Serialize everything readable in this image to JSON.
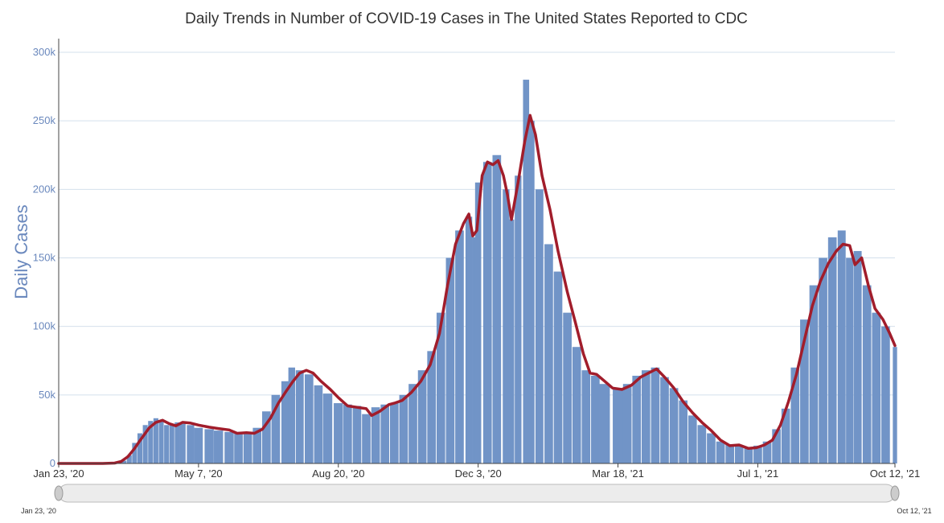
{
  "chart_data": {
    "type": "bar",
    "title": "Daily Trends in Number of COVID-19 Cases in The United States Reported to CDC",
    "ylabel": "Daily Cases",
    "xlabel": "",
    "ylim": [
      0,
      300000
    ],
    "xlim": [
      "2020-01-23",
      "2021-10-12"
    ],
    "grid": true,
    "yticks": [
      {
        "value": 0,
        "label": "0"
      },
      {
        "value": 50000,
        "label": "50k"
      },
      {
        "value": 100000,
        "label": "100k"
      },
      {
        "value": 150000,
        "label": "150k"
      },
      {
        "value": 200000,
        "label": "200k"
      },
      {
        "value": 250000,
        "label": "250k"
      },
      {
        "value": 300000,
        "label": "300k"
      }
    ],
    "xticks": [
      {
        "date": "2020-01-23",
        "label": "Jan 23, '20"
      },
      {
        "date": "2020-05-07",
        "label": "May 7, '20"
      },
      {
        "date": "2020-08-20",
        "label": "Aug 20, '20"
      },
      {
        "date": "2020-12-03",
        "label": "Dec 3, '20"
      },
      {
        "date": "2021-03-18",
        "label": "Mar 18, '21"
      },
      {
        "date": "2021-07-01",
        "label": "Jul 1, '21"
      },
      {
        "date": "2021-10-12",
        "label": "Oct 12, '21"
      }
    ],
    "range_selector": {
      "start_label": "Jan 23, '20",
      "end_label": "Oct 12, '21"
    },
    "series": [
      {
        "kind": "bars",
        "color": "#7194c7",
        "points": [
          [
            "2020-01-23",
            0
          ],
          [
            "2020-02-20",
            0
          ],
          [
            "2020-03-01",
            0
          ],
          [
            "2020-03-08",
            500
          ],
          [
            "2020-03-12",
            2000
          ],
          [
            "2020-03-16",
            6000
          ],
          [
            "2020-03-20",
            15000
          ],
          [
            "2020-03-24",
            22000
          ],
          [
            "2020-03-28",
            28000
          ],
          [
            "2020-04-01",
            31000
          ],
          [
            "2020-04-05",
            33000
          ],
          [
            "2020-04-09",
            31000
          ],
          [
            "2020-04-13",
            28000
          ],
          [
            "2020-04-17",
            29000
          ],
          [
            "2020-04-21",
            30000
          ],
          [
            "2020-04-25",
            29000
          ],
          [
            "2020-05-01",
            28000
          ],
          [
            "2020-05-07",
            26000
          ],
          [
            "2020-05-15",
            25000
          ],
          [
            "2020-05-22",
            24000
          ],
          [
            "2020-05-30",
            23000
          ],
          [
            "2020-06-06",
            22000
          ],
          [
            "2020-06-13",
            22000
          ],
          [
            "2020-06-20",
            26000
          ],
          [
            "2020-06-27",
            38000
          ],
          [
            "2020-07-04",
            50000
          ],
          [
            "2020-07-11",
            60000
          ],
          [
            "2020-07-16",
            70000
          ],
          [
            "2020-07-22",
            68000
          ],
          [
            "2020-07-29",
            65000
          ],
          [
            "2020-08-05",
            57000
          ],
          [
            "2020-08-12",
            51000
          ],
          [
            "2020-08-20",
            44000
          ],
          [
            "2020-08-27",
            43000
          ],
          [
            "2020-09-03",
            42000
          ],
          [
            "2020-09-10",
            36000
          ],
          [
            "2020-09-17",
            41000
          ],
          [
            "2020-09-24",
            43000
          ],
          [
            "2020-10-01",
            44000
          ],
          [
            "2020-10-08",
            50000
          ],
          [
            "2020-10-15",
            58000
          ],
          [
            "2020-10-22",
            68000
          ],
          [
            "2020-10-29",
            82000
          ],
          [
            "2020-11-05",
            110000
          ],
          [
            "2020-11-12",
            150000
          ],
          [
            "2020-11-19",
            170000
          ],
          [
            "2020-11-26",
            180000
          ],
          [
            "2020-11-30",
            165000
          ],
          [
            "2020-12-03",
            205000
          ],
          [
            "2020-12-10",
            220000
          ],
          [
            "2020-12-17",
            225000
          ],
          [
            "2020-12-24",
            200000
          ],
          [
            "2020-12-28",
            178000
          ],
          [
            "2021-01-02",
            210000
          ],
          [
            "2021-01-08",
            280000
          ],
          [
            "2021-01-12",
            250000
          ],
          [
            "2021-01-18",
            200000
          ],
          [
            "2021-01-25",
            160000
          ],
          [
            "2021-02-01",
            140000
          ],
          [
            "2021-02-08",
            110000
          ],
          [
            "2021-02-15",
            85000
          ],
          [
            "2021-02-22",
            68000
          ],
          [
            "2021-03-01",
            64000
          ],
          [
            "2021-03-08",
            58000
          ],
          [
            "2021-03-18",
            54000
          ],
          [
            "2021-03-25",
            58000
          ],
          [
            "2021-04-01",
            64000
          ],
          [
            "2021-04-08",
            68000
          ],
          [
            "2021-04-15",
            70000
          ],
          [
            "2021-04-22",
            63000
          ],
          [
            "2021-04-29",
            55000
          ],
          [
            "2021-05-06",
            46000
          ],
          [
            "2021-05-13",
            35000
          ],
          [
            "2021-05-20",
            28000
          ],
          [
            "2021-05-27",
            22000
          ],
          [
            "2021-06-03",
            16000
          ],
          [
            "2021-06-10",
            14000
          ],
          [
            "2021-06-17",
            13000
          ],
          [
            "2021-06-24",
            12000
          ],
          [
            "2021-07-01",
            13000
          ],
          [
            "2021-07-08",
            16000
          ],
          [
            "2021-07-15",
            25000
          ],
          [
            "2021-07-22",
            40000
          ],
          [
            "2021-07-29",
            70000
          ],
          [
            "2021-08-05",
            105000
          ],
          [
            "2021-08-12",
            130000
          ],
          [
            "2021-08-19",
            150000
          ],
          [
            "2021-08-26",
            165000
          ],
          [
            "2021-09-02",
            170000
          ],
          [
            "2021-09-08",
            150000
          ],
          [
            "2021-09-14",
            155000
          ],
          [
            "2021-09-21",
            130000
          ],
          [
            "2021-09-28",
            110000
          ],
          [
            "2021-10-05",
            100000
          ],
          [
            "2021-10-12",
            85000
          ]
        ]
      },
      {
        "kind": "line",
        "color": "#a11d2b",
        "points": [
          [
            "2020-01-23",
            0
          ],
          [
            "2020-02-25",
            0
          ],
          [
            "2020-03-05",
            300
          ],
          [
            "2020-03-10",
            1500
          ],
          [
            "2020-03-15",
            5000
          ],
          [
            "2020-03-20",
            11000
          ],
          [
            "2020-03-25",
            18000
          ],
          [
            "2020-03-31",
            26000
          ],
          [
            "2020-04-05",
            30000
          ],
          [
            "2020-04-10",
            31500
          ],
          [
            "2020-04-15",
            29000
          ],
          [
            "2020-04-20",
            27500
          ],
          [
            "2020-04-25",
            30000
          ],
          [
            "2020-05-01",
            29500
          ],
          [
            "2020-05-07",
            28000
          ],
          [
            "2020-05-15",
            26500
          ],
          [
            "2020-05-22",
            25500
          ],
          [
            "2020-05-30",
            24500
          ],
          [
            "2020-06-05",
            22000
          ],
          [
            "2020-06-12",
            22500
          ],
          [
            "2020-06-18",
            22000
          ],
          [
            "2020-06-24",
            25000
          ],
          [
            "2020-06-30",
            33000
          ],
          [
            "2020-07-06",
            44000
          ],
          [
            "2020-07-12",
            53000
          ],
          [
            "2020-07-17",
            60000
          ],
          [
            "2020-07-22",
            66000
          ],
          [
            "2020-07-27",
            68000
          ],
          [
            "2020-08-01",
            66000
          ],
          [
            "2020-08-07",
            60000
          ],
          [
            "2020-08-14",
            54000
          ],
          [
            "2020-08-20",
            48000
          ],
          [
            "2020-08-27",
            42000
          ],
          [
            "2020-09-03",
            41000
          ],
          [
            "2020-09-10",
            40000
          ],
          [
            "2020-09-14",
            35000
          ],
          [
            "2020-09-20",
            38000
          ],
          [
            "2020-09-27",
            43000
          ],
          [
            "2020-10-01",
            44000
          ],
          [
            "2020-10-07",
            46000
          ],
          [
            "2020-10-14",
            52000
          ],
          [
            "2020-10-21",
            60000
          ],
          [
            "2020-10-28",
            72000
          ],
          [
            "2020-11-04",
            95000
          ],
          [
            "2020-11-10",
            130000
          ],
          [
            "2020-11-16",
            160000
          ],
          [
            "2020-11-22",
            175000
          ],
          [
            "2020-11-26",
            182000
          ],
          [
            "2020-11-29",
            166000
          ],
          [
            "2020-12-02",
            170000
          ],
          [
            "2020-12-06",
            210000
          ],
          [
            "2020-12-10",
            220000
          ],
          [
            "2020-12-14",
            218000
          ],
          [
            "2020-12-18",
            221000
          ],
          [
            "2020-12-22",
            210000
          ],
          [
            "2020-12-25",
            196000
          ],
          [
            "2020-12-28",
            178000
          ],
          [
            "2021-01-02",
            205000
          ],
          [
            "2021-01-07",
            235000
          ],
          [
            "2021-01-11",
            254000
          ],
          [
            "2021-01-15",
            240000
          ],
          [
            "2021-01-20",
            210000
          ],
          [
            "2021-01-26",
            185000
          ],
          [
            "2021-02-01",
            155000
          ],
          [
            "2021-02-08",
            125000
          ],
          [
            "2021-02-14",
            103000
          ],
          [
            "2021-02-20",
            80000
          ],
          [
            "2021-02-25",
            66000
          ],
          [
            "2021-03-02",
            65000
          ],
          [
            "2021-03-08",
            60000
          ],
          [
            "2021-03-14",
            55000
          ],
          [
            "2021-03-21",
            54000
          ],
          [
            "2021-03-28",
            57000
          ],
          [
            "2021-04-04",
            63000
          ],
          [
            "2021-04-10",
            66000
          ],
          [
            "2021-04-16",
            69000
          ],
          [
            "2021-04-22",
            63000
          ],
          [
            "2021-04-29",
            55000
          ],
          [
            "2021-05-06",
            45000
          ],
          [
            "2021-05-13",
            37000
          ],
          [
            "2021-05-20",
            30000
          ],
          [
            "2021-05-27",
            24000
          ],
          [
            "2021-06-03",
            17000
          ],
          [
            "2021-06-10",
            13000
          ],
          [
            "2021-06-17",
            13500
          ],
          [
            "2021-06-24",
            11000
          ],
          [
            "2021-06-30",
            11500
          ],
          [
            "2021-07-06",
            13500
          ],
          [
            "2021-07-12",
            17000
          ],
          [
            "2021-07-18",
            28000
          ],
          [
            "2021-07-24",
            45000
          ],
          [
            "2021-07-30",
            65000
          ],
          [
            "2021-08-05",
            90000
          ],
          [
            "2021-08-11",
            115000
          ],
          [
            "2021-08-17",
            133000
          ],
          [
            "2021-08-23",
            146000
          ],
          [
            "2021-08-29",
            155000
          ],
          [
            "2021-09-03",
            160000
          ],
          [
            "2021-09-08",
            159000
          ],
          [
            "2021-09-12",
            145000
          ],
          [
            "2021-09-17",
            150000
          ],
          [
            "2021-09-22",
            130000
          ],
          [
            "2021-09-27",
            113000
          ],
          [
            "2021-10-03",
            105000
          ],
          [
            "2021-10-08",
            95000
          ],
          [
            "2021-10-12",
            86000
          ]
        ]
      }
    ]
  }
}
